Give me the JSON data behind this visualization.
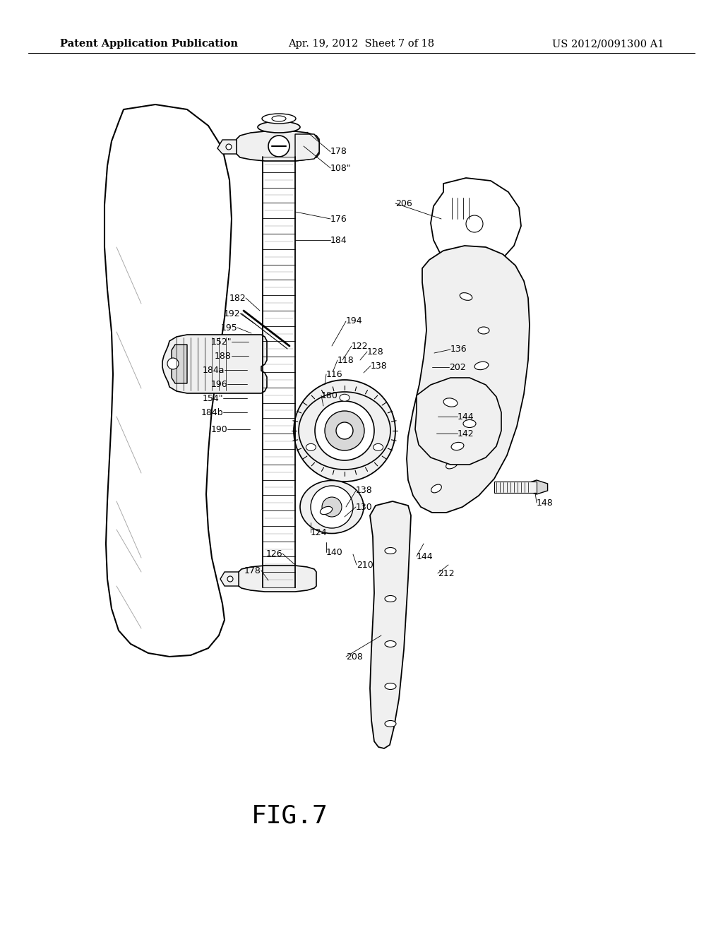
{
  "background_color": "#ffffff",
  "header_left": "Patent Application Publication",
  "header_center": "Apr. 19, 2012  Sheet 7 of 18",
  "header_right": "US 2012/0091300 A1",
  "figure_label": "FIG.7",
  "header_fontsize": 10.5,
  "figure_label_fontsize": 26,
  "line_color": "#000000",
  "fill_light": "#f0f0f0",
  "fill_mid": "#d8d8d8",
  "fill_dark": "#b0b0b0"
}
